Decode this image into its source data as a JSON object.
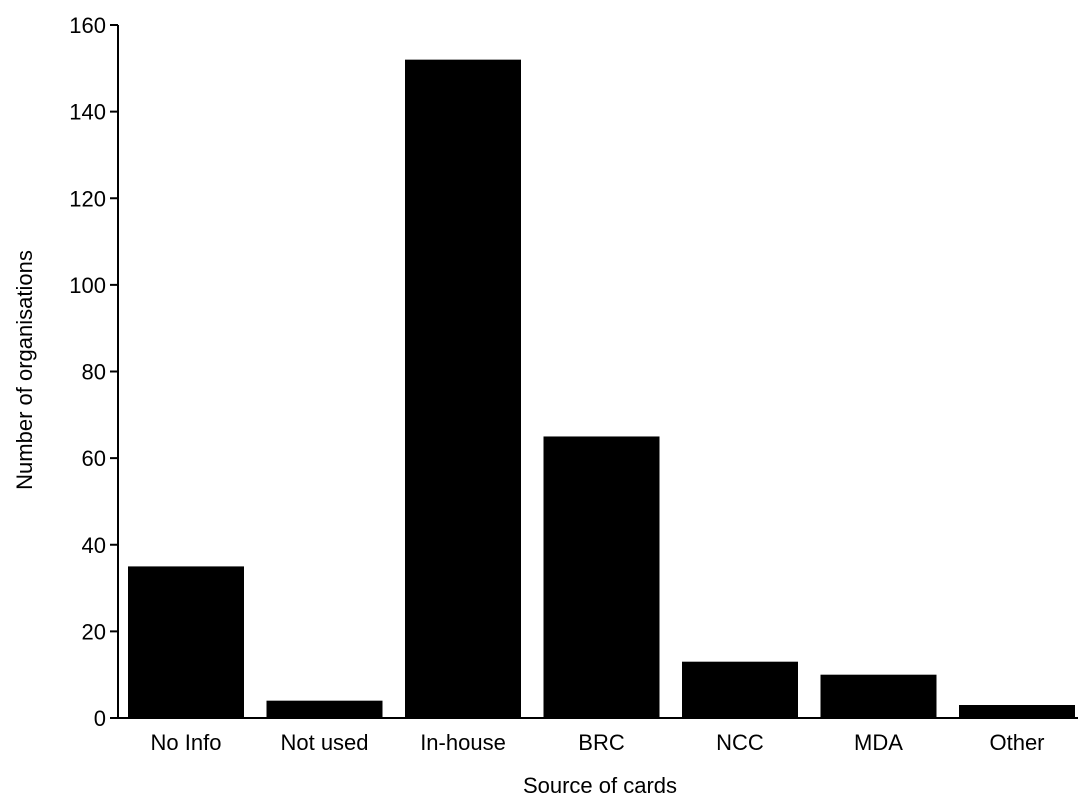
{
  "chart_data": {
    "type": "bar",
    "categories": [
      "No Info",
      "Not used",
      "In-house",
      "BRC",
      "NCC",
      "MDA",
      "Other"
    ],
    "values": [
      35,
      4,
      152,
      65,
      13,
      10,
      3
    ],
    "title": "",
    "xlabel": "Source of cards",
    "ylabel": "Number of organisations",
    "ylim": [
      0,
      160
    ],
    "yticks": [
      0,
      20,
      40,
      60,
      80,
      100,
      120,
      140,
      160
    ],
    "grid": false,
    "bar_color": "#000000"
  }
}
